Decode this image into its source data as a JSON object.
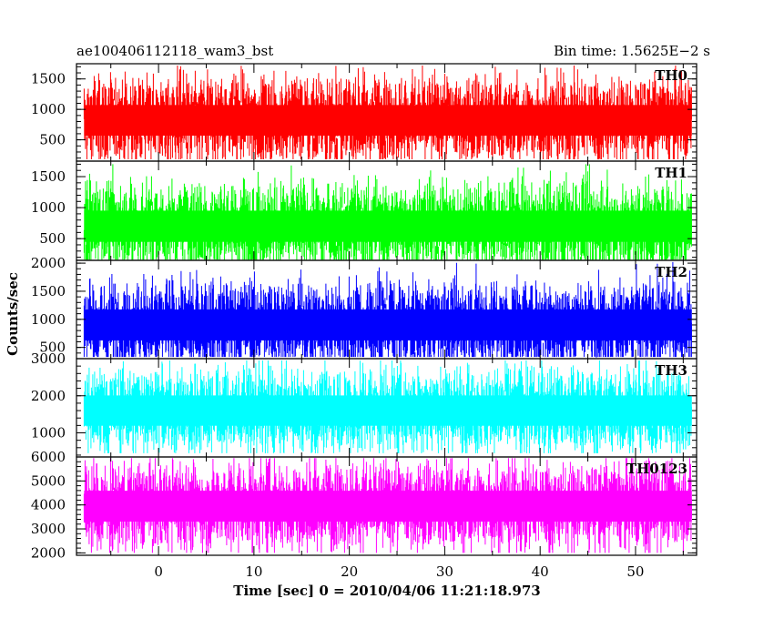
{
  "header": {
    "title": "ae100406112118_wam3_bst",
    "bin_time": "Bin time: 1.5625E−2 s"
  },
  "chart_data": {
    "type": "line",
    "title": "ae100406112118_wam3_bst",
    "xlabel": "Time [sec] 0 = 2010/04/06 11:21:18.973",
    "ylabel": "Counts/sec",
    "xlim": [
      -8.6,
      56.4
    ],
    "data_xrange": [
      -7.8,
      55.9
    ],
    "bin_time_sec": 0.015625,
    "x_ticks": [
      "0",
      "10",
      "20",
      "30",
      "40",
      "50"
    ],
    "x_tick_values": [
      0,
      10,
      20,
      30,
      40,
      50
    ],
    "grid": false,
    "panels": [
      {
        "name": "TH0",
        "color": "#ff0000",
        "ylim": [
          150,
          1750
        ],
        "ticks": [
          500,
          1000,
          1500
        ],
        "tick_labels": [
          "500",
          "1000",
          "1500"
        ],
        "mean": 820,
        "min": 180,
        "max": 1720
      },
      {
        "name": "TH1",
        "color": "#00ff00",
        "ylim": [
          150,
          1750
        ],
        "ticks": [
          500,
          1000,
          1500
        ],
        "tick_labels": [
          "500",
          "1000",
          "1500"
        ],
        "mean": 700,
        "min": 160,
        "max": 1700
      },
      {
        "name": "TH2",
        "color": "#0000ff",
        "ylim": [
          300,
          2050
        ],
        "ticks": [
          500,
          1000,
          1500,
          2000
        ],
        "tick_labels": [
          "500",
          "1000",
          "1500",
          "2000"
        ],
        "mean": 900,
        "min": 330,
        "max": 2020
      },
      {
        "name": "TH3",
        "color": "#00ffff",
        "ylim": [
          350,
          3000
        ],
        "ticks": [
          1000,
          2000,
          3000
        ],
        "tick_labels": [
          "1000",
          "2000",
          "3000"
        ],
        "mean": 1600,
        "min": 450,
        "max": 2950
      },
      {
        "name": "TH0123",
        "color": "#ff00ff",
        "ylim": [
          1900,
          6000
        ],
        "ticks": [
          2000,
          3000,
          4000,
          5000,
          6000
        ],
        "tick_labels": [
          "2000",
          "3000",
          "4000",
          "5000",
          "6000"
        ],
        "mean": 3950,
        "min": 2000,
        "max": 5950
      }
    ]
  }
}
